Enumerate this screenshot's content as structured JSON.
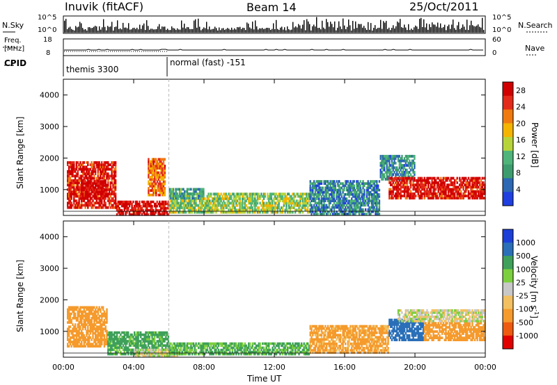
{
  "header": {
    "station": "Inuvik (fitACF)",
    "beam": "Beam 14",
    "date": "25/Oct/2011"
  },
  "sky_panel": {
    "left_label": "N.Sky",
    "right_label": "N.Search",
    "left_top": "10^5",
    "left_bottom": "10^0",
    "right_top": "10^5",
    "right_bottom": "10^0"
  },
  "freq_panel": {
    "left_label_1": "Freq.",
    "left_label_2": "[MHz]",
    "left_top": "18",
    "left_bottom": "8",
    "right_top": "60",
    "right_bottom": "0",
    "right_label": "Nave"
  },
  "cpid_panel": {
    "label": "CPID",
    "mode1": "themis 3300",
    "mode2": "normal (fast) -151"
  },
  "colors": {
    "power": [
      "#1f3fe0",
      "#2c68b4",
      "#3d9c6e",
      "#4fb47a",
      "#b6d43a",
      "#f4b400",
      "#f07a10",
      "#e42a1a",
      "#d00000"
    ],
    "velocity": [
      "#e00000",
      "#ee5a10",
      "#f59a2c",
      "#f2c060",
      "#c8c8c8",
      "#7ccf3e",
      "#3ea05a",
      "#2a6fb8",
      "#1c3fd8"
    ]
  },
  "chart_data": [
    {
      "type": "heatmap",
      "title": "Power",
      "ylabel": "Slant Range [km]",
      "xlabel": "Time UT",
      "x_ticks": [
        "00:00",
        "04:00",
        "08:00",
        "12:00",
        "16:00",
        "20:00",
        "00:00"
      ],
      "x_range_hours": [
        0,
        24
      ],
      "y_ticks": [
        "1000",
        "2000",
        "3000",
        "4000"
      ],
      "ylim": [
        180,
        4500
      ],
      "colorbar": {
        "label": "Power [dB]",
        "ticks": [
          "4",
          "8",
          "12",
          "16",
          "20",
          "24",
          "28"
        ],
        "range": [
          0,
          30
        ]
      },
      "regions": [
        {
          "t0": 0.2,
          "t1": 3.0,
          "r0": 400,
          "r1": 1900,
          "value": 27
        },
        {
          "t0": 1.0,
          "t1": 2.5,
          "r0": 700,
          "r1": 1300,
          "value": 29
        },
        {
          "t0": 3.0,
          "t1": 6.0,
          "r0": 180,
          "r1": 650,
          "value": 28
        },
        {
          "t0": 4.8,
          "t1": 5.8,
          "r0": 800,
          "r1": 2000,
          "value": 22
        },
        {
          "t0": 6.0,
          "t1": 14.0,
          "r0": 250,
          "r1": 900,
          "value": 14
        },
        {
          "t0": 6.0,
          "t1": 8.0,
          "r0": 700,
          "r1": 1050,
          "value": 9
        },
        {
          "t0": 14.0,
          "t1": 18.0,
          "r0": 200,
          "r1": 1300,
          "value": 7
        },
        {
          "t0": 18.0,
          "t1": 20.0,
          "r0": 1300,
          "r1": 2100,
          "value": 8
        },
        {
          "t0": 18.5,
          "t1": 24.0,
          "r0": 700,
          "r1": 1400,
          "value": 27
        }
      ]
    },
    {
      "type": "heatmap",
      "title": "Velocity",
      "ylabel": "Slant Range [km]",
      "xlabel": "Time UT",
      "x_ticks": [
        "00:00",
        "04:00",
        "08:00",
        "12:00",
        "16:00",
        "20:00",
        "00:00"
      ],
      "x_range_hours": [
        0,
        24
      ],
      "y_ticks": [
        "1000",
        "2000",
        "3000",
        "4000"
      ],
      "ylim": [
        180,
        4500
      ],
      "colorbar": {
        "label": "Velocity [m s^-1]",
        "ticks": [
          "1000",
          "500",
          "100",
          "25",
          "-25",
          "-100",
          "-500",
          "-1000"
        ]
      },
      "regions": [
        {
          "t0": 0.2,
          "t1": 2.5,
          "r0": 500,
          "r1": 1800,
          "value": -400
        },
        {
          "t0": 2.5,
          "t1": 6.0,
          "r0": 250,
          "r1": 1000,
          "value": 150
        },
        {
          "t0": 4.0,
          "t1": 6.5,
          "r0": 200,
          "r1": 450,
          "value": 0
        },
        {
          "t0": 6.0,
          "t1": 14.0,
          "r0": 250,
          "r1": 650,
          "value": 120
        },
        {
          "t0": 14.0,
          "t1": 18.5,
          "r0": 300,
          "r1": 1200,
          "value": -150
        },
        {
          "t0": 18.5,
          "t1": 20.5,
          "r0": 700,
          "r1": 1400,
          "value": 700
        },
        {
          "t0": 20.5,
          "t1": 24.0,
          "r0": 700,
          "r1": 1300,
          "value": -400
        },
        {
          "t0": 19.0,
          "t1": 24.0,
          "r0": 1300,
          "r1": 1700,
          "value": 0
        }
      ]
    }
  ]
}
